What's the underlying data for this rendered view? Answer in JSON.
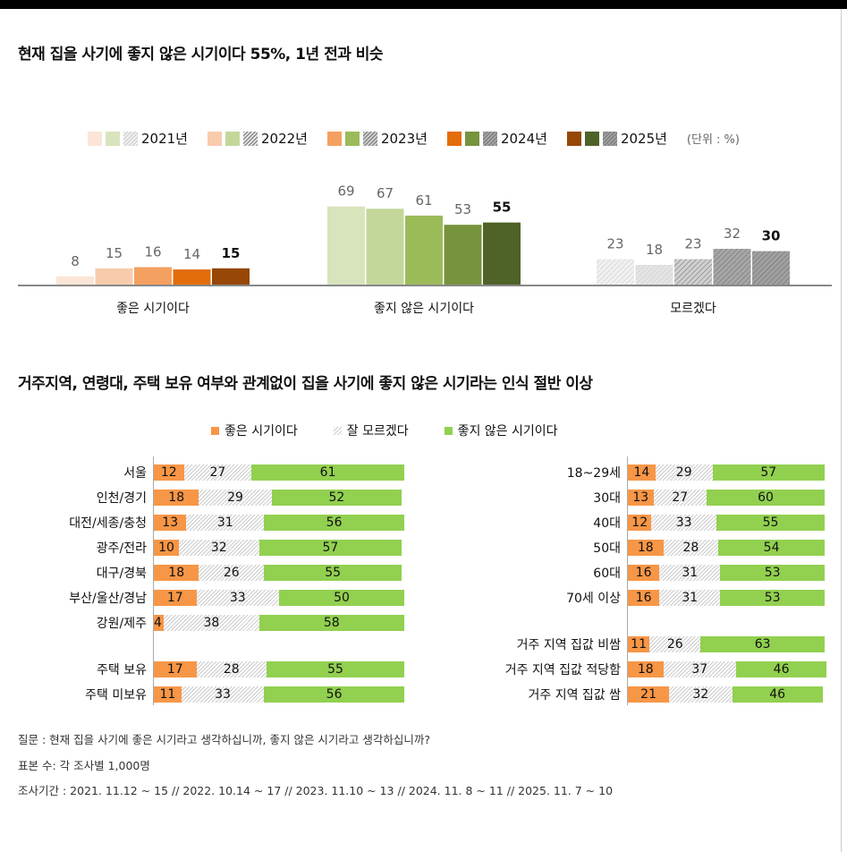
{
  "title1": "현재 집을 사기에 좋지 않은 시기이다 55%, 1년 전과 비슷",
  "title2": "거주지역, 연령대, 주택 보유 여부와 관계없이 집을 사기에 좋지 않은 시기라는 인식 절반 이상",
  "chart_data": [
    {
      "type": "bar",
      "categories": [
        "좋은 시기이다",
        "좋지 않은 시기이다",
        "모르겠다"
      ],
      "series": [
        {
          "name": "2021년",
          "values": [
            8,
            69,
            23
          ]
        },
        {
          "name": "2022년",
          "values": [
            15,
            67,
            18
          ]
        },
        {
          "name": "2023년",
          "values": [
            16,
            61,
            23
          ]
        },
        {
          "name": "2024년",
          "values": [
            14,
            53,
            32
          ]
        },
        {
          "name": "2025년",
          "values": [
            15,
            55,
            30
          ]
        }
      ],
      "unit": "(단위 : %)",
      "colors": {
        "good": [
          "#fbe5d6",
          "#f8cbad",
          "#f4a060",
          "#e46c0a",
          "#974706"
        ],
        "bad": [
          "#d8e4bc",
          "#c4d79b",
          "#9bbb59",
          "#77933c",
          "#4f6228"
        ],
        "dk": [
          "#f0f0f0",
          "#e4e4e4",
          "#d0d0d0",
          "#a6a6a6",
          "#a0a0a0"
        ]
      }
    },
    {
      "type": "stacked-bar",
      "legend": [
        "좋은 시기이다",
        "잘 모르겠다",
        "좋지 않은 시기이다"
      ],
      "colors": [
        "#f79646",
        "#d9d9d9",
        "#92d050"
      ],
      "rows": [
        [
          "서울",
          12,
          27,
          61
        ],
        [
          "인천/경기",
          18,
          29,
          52
        ],
        [
          "대전/세종/충청",
          13,
          31,
          56
        ],
        [
          "광주/전라",
          10,
          32,
          57
        ],
        [
          "대구/경북",
          18,
          26,
          55
        ],
        [
          "부산/울산/경남",
          17,
          33,
          50
        ],
        [
          "강원/제주",
          4,
          38,
          58
        ],
        [
          "주택 보유",
          17,
          28,
          55
        ],
        [
          "주택 미보유",
          11,
          33,
          56
        ]
      ]
    },
    {
      "type": "stacked-bar",
      "rows": [
        [
          "18~29세",
          14,
          29,
          57
        ],
        [
          "30대",
          13,
          27,
          60
        ],
        [
          "40대",
          12,
          33,
          55
        ],
        [
          "50대",
          18,
          28,
          54
        ],
        [
          "60대",
          16,
          31,
          53
        ],
        [
          "70세 이상",
          16,
          31,
          53
        ],
        [
          "거주 지역 집값 비쌈",
          11,
          26,
          63
        ],
        [
          "거주 지역 집값 적당함",
          18,
          37,
          46
        ],
        [
          "거주 지역 집값 쌈",
          21,
          32,
          46
        ]
      ]
    }
  ],
  "footer": {
    "q": "질문 : 현재 집을 사기에 좋은 시기라고 생각하십니까, 좋지 않은 시기라고 생각하십니까?",
    "n": "표본 수: 각 조사별 1,000명",
    "period": "조사기간 : 2021. 11.12 ~ 15 // 2022. 10.14 ~ 17 // 2023. 11.10 ~ 13 // 2024. 11. 8 ~ 11 // 2025. 11. 7 ~ 10"
  }
}
